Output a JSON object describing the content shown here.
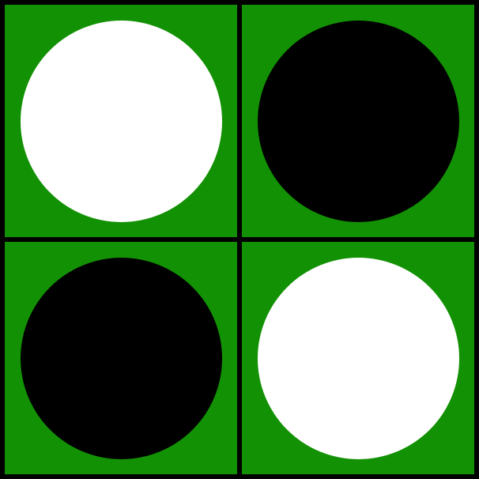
{
  "board": {
    "rows": 2,
    "cols": 2,
    "colors": {
      "background": "#139104",
      "grid_line": "#000000",
      "white_piece": "#ffffff",
      "black_piece": "#000000"
    },
    "cells": [
      {
        "row": 0,
        "col": 0,
        "piece": "white"
      },
      {
        "row": 0,
        "col": 1,
        "piece": "black"
      },
      {
        "row": 1,
        "col": 0,
        "piece": "black"
      },
      {
        "row": 1,
        "col": 1,
        "piece": "white"
      }
    ]
  }
}
